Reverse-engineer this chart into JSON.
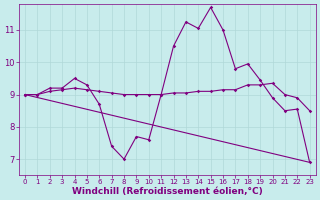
{
  "bg_color": "#c8ecec",
  "grid_color": "#b0d8d8",
  "line_color": "#800080",
  "marker_color": "#800080",
  "xlabel": "Windchill (Refroidissement éolien,°C)",
  "xlabel_color": "#800080",
  "tick_color": "#800080",
  "ylim": [
    6.5,
    11.8
  ],
  "xlim": [
    -0.5,
    23.5
  ],
  "yticks": [
    7,
    8,
    9,
    10,
    11
  ],
  "xticks": [
    0,
    1,
    2,
    3,
    4,
    5,
    6,
    7,
    8,
    9,
    10,
    11,
    12,
    13,
    14,
    15,
    16,
    17,
    18,
    19,
    20,
    21,
    22,
    23
  ],
  "series1_x": [
    0,
    1,
    2,
    3,
    4,
    5,
    6,
    7,
    8,
    9,
    10,
    11,
    12,
    13,
    14,
    15,
    16,
    17,
    18,
    19,
    20,
    21,
    22,
    23
  ],
  "series1_y": [
    9.0,
    9.0,
    9.2,
    9.2,
    9.5,
    9.3,
    8.7,
    7.4,
    7.0,
    7.7,
    7.6,
    9.0,
    10.5,
    11.25,
    11.05,
    11.7,
    11.0,
    9.8,
    9.95,
    9.45,
    8.9,
    8.5,
    8.55,
    6.9
  ],
  "series2_x": [
    0,
    1,
    2,
    3,
    4,
    5,
    6,
    7,
    8,
    9,
    10,
    11,
    12,
    13,
    14,
    15,
    16,
    17,
    18,
    19,
    20,
    21,
    22,
    23
  ],
  "series2_y": [
    9.0,
    9.0,
    9.1,
    9.15,
    9.2,
    9.15,
    9.1,
    9.05,
    9.0,
    9.0,
    9.0,
    9.0,
    9.05,
    9.05,
    9.1,
    9.1,
    9.15,
    9.15,
    9.3,
    9.3,
    9.35,
    9.0,
    8.9,
    8.5
  ],
  "series3_x": [
    0,
    23
  ],
  "series3_y": [
    9.0,
    6.9
  ],
  "fontsize_xlabel": 6.5,
  "fontsize_tick": 6.0
}
